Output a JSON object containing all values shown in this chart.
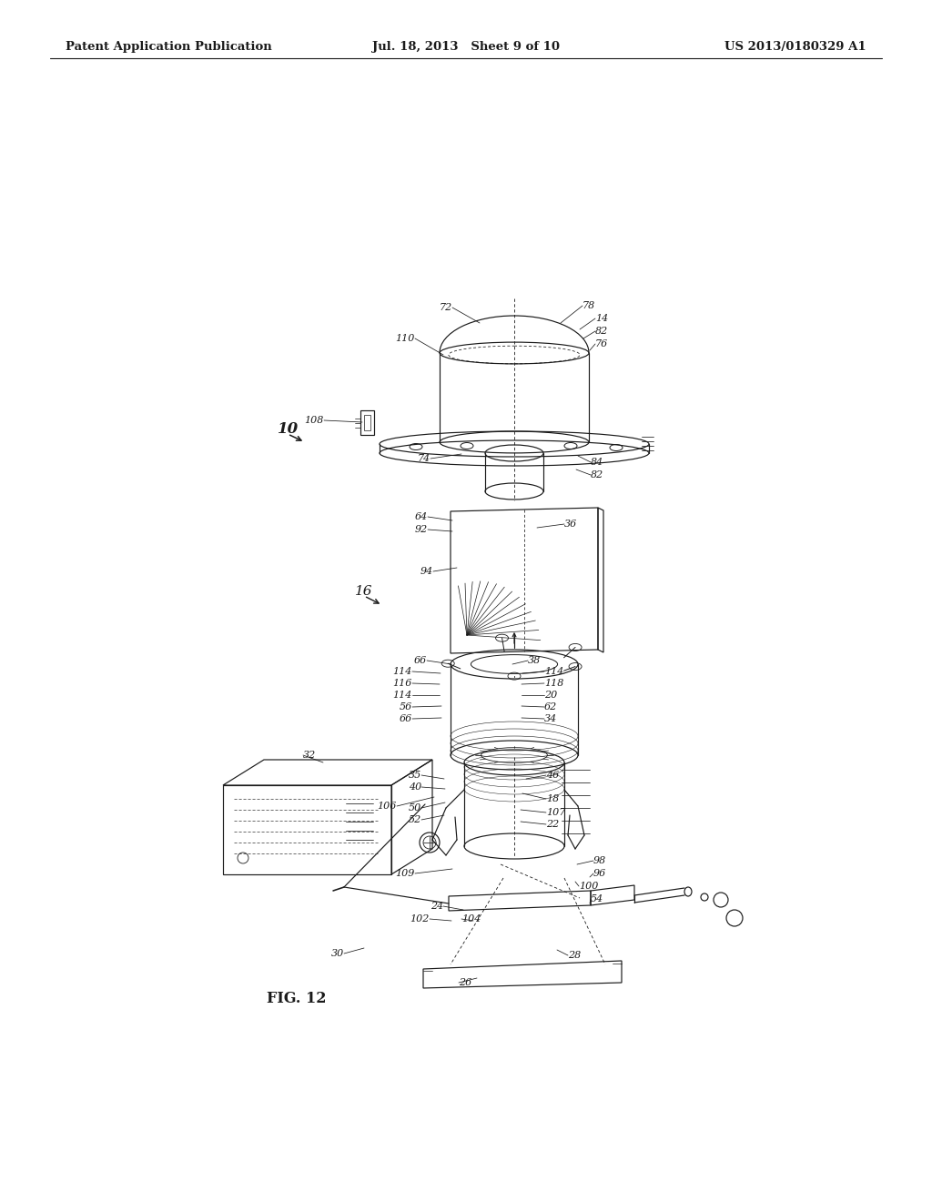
{
  "header_left": "Patent Application Publication",
  "header_center": "Jul. 18, 2013   Sheet 9 of 10",
  "header_right": "US 2013/0180329 A1",
  "figure_label": "FIG. 12",
  "bg": "#ffffff",
  "lc": "#1a1a1a",
  "tc": "#1a1a1a",
  "header_fs": 9.5,
  "label_fs": 8.0,
  "fig_label_fs": 11.5,
  "bold_fs": 12
}
